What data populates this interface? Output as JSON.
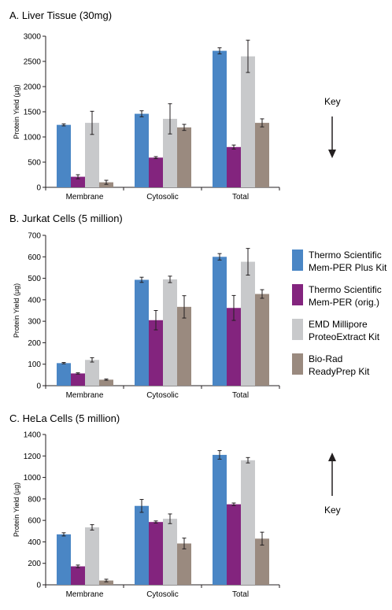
{
  "figure": {
    "key_label": "Key",
    "legend": [
      {
        "line1": "Thermo Scientific",
        "line2": "Mem-PER Plus Kit",
        "color": "#4a86c5"
      },
      {
        "line1": "Thermo Scientific",
        "line2": "Mem-PER (orig.)",
        "color": "#83247e"
      },
      {
        "line1": "EMD Millipore",
        "line2": "ProteoExtract Kit",
        "color": "#c8c9cb"
      },
      {
        "line1": "Bio-Rad",
        "line2": "ReadyPrep Kit",
        "color": "#9a8a7f"
      }
    ]
  },
  "chart_data": [
    {
      "type": "bar",
      "title": "A. Liver Tissue (30mg)",
      "ylabel": "Protein Yield (µg)",
      "ylim": [
        0,
        3000
      ],
      "yticks": [
        "0",
        "500",
        "1000",
        "1500",
        "2000",
        "2500",
        "3000"
      ],
      "categories": [
        "Membrane",
        "Cytosolic",
        "Total"
      ],
      "series": [
        {
          "name": "Thermo Scientific Mem-PER Plus Kit",
          "values": [
            1240,
            1460,
            2710
          ],
          "errors": [
            20,
            60,
            60
          ]
        },
        {
          "name": "Thermo Scientific Mem-PER (orig.)",
          "values": [
            210,
            590,
            800
          ],
          "errors": [
            40,
            20,
            40
          ]
        },
        {
          "name": "EMD Millipore ProteoExtract Kit",
          "values": [
            1280,
            1360,
            2600
          ],
          "errors": [
            230,
            300,
            320
          ]
        },
        {
          "name": "Bio-Rad ReadyPrep Kit",
          "values": [
            100,
            1190,
            1280
          ],
          "errors": [
            40,
            60,
            80
          ]
        }
      ]
    },
    {
      "type": "bar",
      "title": "B. Jurkat Cells (5 million)",
      "ylabel": "Protein Yield (µg)",
      "ylim": [
        0,
        700
      ],
      "yticks": [
        "0",
        "100",
        "200",
        "300",
        "400",
        "500",
        "600",
        "700"
      ],
      "categories": [
        "Membrane",
        "Cytosolic",
        "Total"
      ],
      "series": [
        {
          "name": "Thermo Scientific Mem-PER Plus Kit",
          "values": [
            105,
            493,
            600
          ],
          "errors": [
            3,
            12,
            15
          ]
        },
        {
          "name": "Thermo Scientific Mem-PER (orig.)",
          "values": [
            57,
            305,
            362
          ],
          "errors": [
            3,
            45,
            58
          ]
        },
        {
          "name": "EMD Millipore ProteoExtract Kit",
          "values": [
            120,
            495,
            577
          ],
          "errors": [
            10,
            15,
            62
          ]
        },
        {
          "name": "Bio-Rad ReadyPrep Kit",
          "values": [
            28,
            367,
            427
          ],
          "errors": [
            3,
            52,
            20
          ]
        }
      ]
    },
    {
      "type": "bar",
      "title": "C. HeLa Cells (5 million)",
      "ylabel": "Protein Yield (µg)",
      "ylim": [
        0,
        1400
      ],
      "yticks": [
        "0",
        "200",
        "400",
        "600",
        "800",
        "1000",
        "1200",
        "1400"
      ],
      "categories": [
        "Membrane",
        "Cytosolic",
        "Total"
      ],
      "series": [
        {
          "name": "Thermo Scientific Mem-PER Plus Kit",
          "values": [
            470,
            735,
            1210
          ],
          "errors": [
            15,
            60,
            40
          ]
        },
        {
          "name": "Thermo Scientific Mem-PER (orig.)",
          "values": [
            172,
            585,
            750
          ],
          "errors": [
            12,
            10,
            12
          ]
        },
        {
          "name": "EMD Millipore ProteoExtract Kit",
          "values": [
            535,
            615,
            1160
          ],
          "errors": [
            25,
            45,
            25
          ]
        },
        {
          "name": "Bio-Rad ReadyPrep Kit",
          "values": [
            40,
            385,
            430
          ],
          "errors": [
            12,
            50,
            60
          ]
        }
      ]
    }
  ]
}
